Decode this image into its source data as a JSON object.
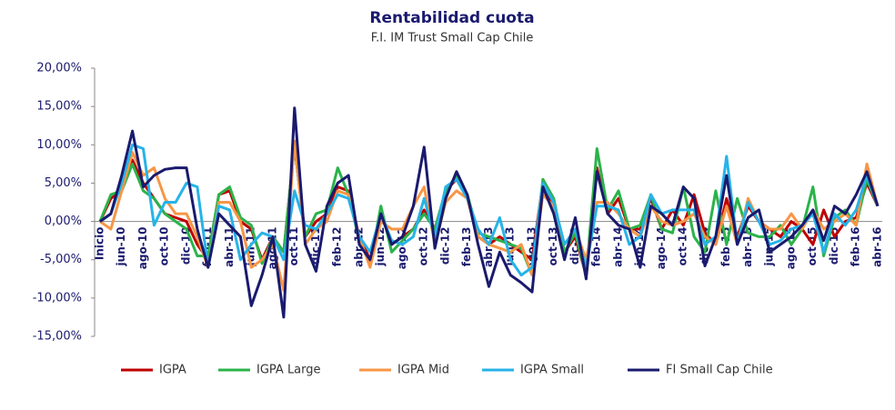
{
  "chart_data": {
    "type": "line",
    "title": "Rentabilidad cuota",
    "subtitle": "F.I. IM Trust Small Cap Chile",
    "categories": [
      "Inicio",
      null,
      "jun-10",
      null,
      "ago-10",
      null,
      "oct-10",
      null,
      "dic-10",
      null,
      "feb-11",
      null,
      "abr-11",
      null,
      "jun-11",
      null,
      "ago-11",
      null,
      "oct-11",
      null,
      "dic-11",
      null,
      "feb-12",
      null,
      "abr-12",
      null,
      "jun-12",
      null,
      "ago-12",
      null,
      "oct-12",
      null,
      "dic-12",
      null,
      "feb-13",
      null,
      "abr-13",
      null,
      "jun-13",
      null,
      "ago-13",
      null,
      "oct-13",
      null,
      "dic-13",
      null,
      "feb-14",
      null,
      "abr-14",
      null,
      "jun-14",
      null,
      "ago-14",
      null,
      "oct-14",
      null,
      "dic-14",
      null,
      "feb-15",
      null,
      "abr-15",
      null,
      "jun-15",
      null,
      "ago-15",
      null,
      "oct-15",
      null,
      "dic-15",
      null,
      "feb-16",
      null,
      "abr-16"
    ],
    "series": [
      {
        "name": "IGPA",
        "color": "#c00000",
        "values": [
          0,
          3,
          4,
          8,
          5,
          3,
          1,
          0.5,
          0,
          -3,
          -5,
          3.5,
          4,
          0,
          -1,
          -5,
          -2,
          -4,
          10,
          -2,
          0,
          1,
          4.5,
          4,
          -2,
          -5,
          1,
          -3,
          -2,
          -1,
          1.5,
          -1,
          4,
          5.5,
          3,
          -2,
          -3,
          -2,
          -3,
          -4,
          -5,
          5,
          2,
          -4,
          -2,
          -7,
          7,
          1,
          3,
          -1,
          -1,
          3,
          -1,
          1.5,
          -0.5,
          3.5,
          -1.5,
          -3,
          3,
          -2,
          2,
          0,
          -1,
          -2,
          0,
          -1,
          -3,
          1.5,
          -2,
          0,
          0.5,
          5,
          2
        ]
      },
      {
        "name": "IGPA Large",
        "color": "#2bb34a",
        "values": [
          0,
          3.5,
          4,
          7.5,
          4,
          3,
          1,
          0,
          -1,
          -4.5,
          -4.5,
          3.5,
          4.5,
          0.5,
          -0.5,
          -5.5,
          -2,
          -4,
          10,
          -2,
          1,
          1.5,
          7,
          3.5,
          -2.5,
          -5.5,
          2,
          -4,
          -2.5,
          -1,
          1,
          -1,
          4,
          6,
          3.5,
          -1.5,
          -2,
          -2.5,
          -3,
          -3.5,
          -7,
          5.5,
          3,
          -4,
          -1.5,
          -7,
          9.5,
          1.5,
          4,
          -1,
          -0.5,
          3.5,
          -1,
          -1.5,
          4.5,
          -2,
          -4,
          4,
          -3,
          3,
          -1.5,
          -2,
          -2,
          -0.5,
          -3,
          -1,
          4.5,
          -4.5,
          0.5,
          1.5,
          -0.5,
          5.5,
          2
        ]
      },
      {
        "name": "IGPA Mid",
        "color": "#f79646",
        "values": [
          0,
          -1,
          4,
          9,
          6,
          7,
          3,
          1,
          1,
          -2,
          -6,
          2.5,
          2.5,
          0,
          -6,
          -5,
          -3,
          -9,
          10.5,
          -3,
          -1,
          0,
          4,
          3.5,
          -2,
          -6,
          0,
          -1,
          -1,
          2,
          4.5,
          -3,
          2.5,
          4,
          3,
          -2,
          -3,
          -3.5,
          -4,
          -3,
          -7,
          3.5,
          2,
          -3,
          -1,
          -5,
          2.5,
          2.5,
          1,
          -1,
          -2,
          2,
          0,
          -0.5,
          0,
          1,
          -2,
          -3,
          2,
          -3,
          3,
          0,
          -1,
          -1,
          1,
          -1,
          1.5,
          -1,
          0,
          1,
          -0.5,
          7.5,
          2
        ]
      },
      {
        "name": "IGPA Small",
        "color": "#27b3e8",
        "values": [
          0,
          1,
          5,
          10,
          9.5,
          -0.5,
          2.5,
          2.5,
          5,
          4.5,
          -6,
          2,
          1.5,
          -5,
          -3,
          -1.5,
          -2,
          -5,
          4,
          -0.5,
          -1,
          1,
          3.5,
          3,
          -2,
          -4,
          1,
          -2.5,
          -3,
          -2,
          3,
          -2,
          4.5,
          5.5,
          3,
          -1,
          -3,
          0.5,
          -5,
          -7,
          -6,
          5,
          2.5,
          -3,
          -1,
          -6,
          2,
          2,
          1.5,
          -3,
          -2,
          3.5,
          1,
          1.5,
          1.5,
          1.5,
          -3,
          -2,
          8.5,
          -3,
          2.5,
          0,
          -3,
          -2.5,
          -1,
          -0.5,
          1,
          -4,
          1,
          -0.5,
          1.5,
          6,
          2
        ]
      },
      {
        "name": "FI Small Cap Chile",
        "color": "#1a1a6e",
        "values": [
          0,
          1,
          6,
          11.8,
          4.5,
          6,
          6.8,
          7,
          7,
          -1,
          -6,
          1,
          -0.5,
          -2,
          -11,
          -7,
          -2,
          -12.5,
          14.8,
          -3,
          -6.5,
          2,
          5,
          6,
          -3,
          -5,
          1,
          -3,
          -2,
          2,
          9.7,
          -3.5,
          3,
          6.5,
          3.5,
          -3,
          -8.5,
          -4,
          -7,
          -8,
          -9.2,
          4.5,
          1,
          -5,
          0.5,
          -7.5,
          6.5,
          1,
          -0.5,
          -1,
          -6,
          2,
          1,
          -0.5,
          4.5,
          3,
          -5.8,
          -2,
          6,
          -3,
          0.5,
          1.5,
          -4,
          -3,
          -2,
          -0.5,
          1.5,
          -2.5,
          2,
          1,
          3.5,
          6.5,
          2
        ]
      }
    ],
    "ylim": [
      -15,
      20
    ],
    "yticks": [
      {
        "value": -15,
        "label": "-15,00%"
      },
      {
        "value": -10,
        "label": "-10,00%"
      },
      {
        "value": -5,
        "label": "-5,00%"
      },
      {
        "value": 0,
        "label": "0,00%"
      },
      {
        "value": 5,
        "label": "5,00%"
      },
      {
        "value": 10,
        "label": "10,00%"
      },
      {
        "value": 15,
        "label": "15,00%"
      },
      {
        "value": 20,
        "label": "20,00%"
      }
    ],
    "legend": "bottom"
  }
}
